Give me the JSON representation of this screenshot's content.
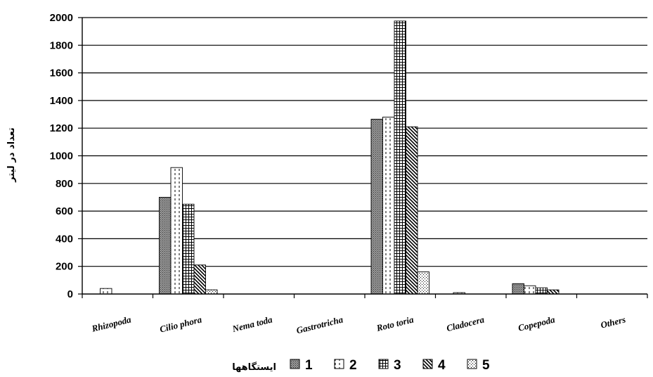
{
  "chart_data": {
    "type": "bar",
    "categories": [
      "Rhizopoda",
      "Cilio phora",
      "Nema toda",
      "Gastrotricha",
      "Roto toria",
      "Cladocera",
      "Copepoda",
      "Others"
    ],
    "series": [
      {
        "name": "1",
        "values": [
          0,
          700,
          0,
          0,
          1265,
          0,
          75,
          0
        ]
      },
      {
        "name": "2",
        "values": [
          40,
          915,
          0,
          0,
          1280,
          10,
          60,
          0
        ]
      },
      {
        "name": "3",
        "values": [
          0,
          650,
          0,
          0,
          1975,
          0,
          45,
          0
        ]
      },
      {
        "name": "4",
        "values": [
          0,
          210,
          0,
          0,
          1210,
          0,
          30,
          0
        ]
      },
      {
        "name": "5",
        "values": [
          0,
          30,
          0,
          0,
          160,
          0,
          0,
          0
        ]
      }
    ],
    "title": "",
    "xlabel": "",
    "ylabel": "تعداد در لیتر",
    "ylim": [
      0,
      2000
    ],
    "yticks": [
      "0",
      "200",
      "400",
      "600",
      "800",
      "1000",
      "1200",
      "1400",
      "1600",
      "1800",
      "2000"
    ],
    "grid": true,
    "legend": {
      "title": "ایستگاهها",
      "placement": "bottom"
    },
    "patterns": {
      "1": "dense-dots",
      "2": "vertical-dashes",
      "3": "grid",
      "4": "diagonal-lines",
      "5": "sparse-dots"
    }
  }
}
